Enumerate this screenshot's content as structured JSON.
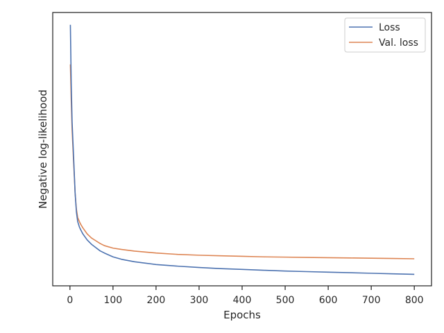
{
  "chart_data": {
    "type": "line",
    "title": "",
    "xlabel": "Epochs",
    "ylabel": "Negative log-likelihood",
    "xlim": [
      -40,
      840
    ],
    "ylim": [
      0,
      1
    ],
    "xticks": [
      "0",
      "100",
      "200",
      "300",
      "400",
      "500",
      "600",
      "700",
      "800"
    ],
    "show_y_tick_labels": false,
    "grid": false,
    "legend_position": "top-right",
    "series": [
      {
        "name": "Loss",
        "color": "#4c72b0",
        "x": [
          1,
          3,
          5,
          8,
          12,
          15,
          18,
          22,
          25,
          30,
          40,
          50,
          60,
          70,
          80,
          100,
          120,
          150,
          200,
          250,
          300,
          350,
          400,
          450,
          500,
          550,
          600,
          650,
          700,
          750,
          800
        ],
        "y": [
          0.955,
          0.74,
          0.6,
          0.49,
          0.34,
          0.27,
          0.235,
          0.215,
          0.205,
          0.19,
          0.168,
          0.152,
          0.14,
          0.128,
          0.12,
          0.106,
          0.097,
          0.088,
          0.078,
          0.072,
          0.067,
          0.063,
          0.06,
          0.057,
          0.054,
          0.052,
          0.05,
          0.048,
          0.046,
          0.044,
          0.042
        ]
      },
      {
        "name": "Val. loss",
        "color": "#dd8452",
        "x": [
          1,
          3,
          5,
          8,
          12,
          15,
          18,
          22,
          25,
          30,
          40,
          50,
          60,
          70,
          80,
          100,
          120,
          150,
          200,
          250,
          300,
          350,
          400,
          450,
          500,
          550,
          600,
          650,
          700,
          750,
          800
        ],
        "y": [
          0.81,
          0.68,
          0.57,
          0.47,
          0.34,
          0.28,
          0.25,
          0.235,
          0.225,
          0.212,
          0.19,
          0.175,
          0.165,
          0.155,
          0.147,
          0.138,
          0.133,
          0.127,
          0.12,
          0.115,
          0.112,
          0.11,
          0.108,
          0.106,
          0.105,
          0.104,
          0.103,
          0.102,
          0.101,
          0.1,
          0.099
        ]
      }
    ]
  }
}
